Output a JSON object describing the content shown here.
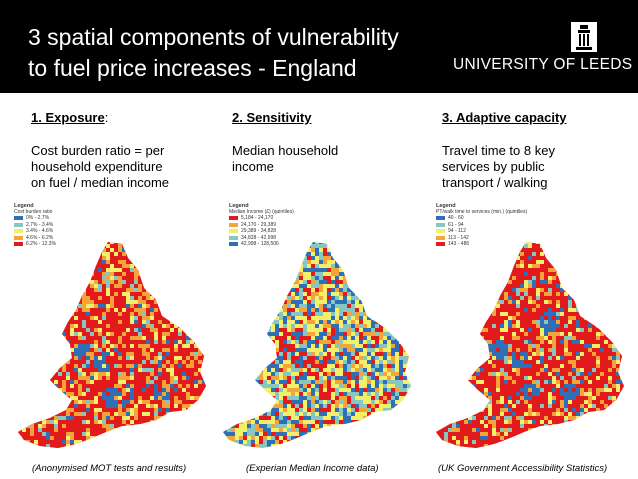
{
  "header": {
    "title_line1": "3 spatial components  of vulnerability",
    "title_line2": "to fuel price increases - England",
    "logo_text": "UNIVERSITY OF LEEDS",
    "logo_icon": "tower-icon"
  },
  "columns": [
    {
      "number_label": "1. Exposure",
      "number_suffix": ":",
      "description": [
        "Cost burden ratio = per",
        "household expenditure",
        "on fuel / median income"
      ],
      "legend": {
        "title": "Legend",
        "subtitle": "Cost burden ratio",
        "items": [
          {
            "label": "0% - 2.7%",
            "color": "#2e6fb7"
          },
          {
            "label": "2.7% - 3.4%",
            "color": "#86c7c1"
          },
          {
            "label": "3.4% - 4.6%",
            "color": "#f2ef6b"
          },
          {
            "label": "4.6% - 6.2%",
            "color": "#f5a43a"
          },
          {
            "label": "6.2% - 12.3%",
            "color": "#e31a1c"
          }
        ]
      },
      "source": "(Anonymised MOT tests and results)"
    },
    {
      "number_label": "2. Sensitivity",
      "number_suffix": "",
      "description": [
        "Median household",
        "income"
      ],
      "legend": {
        "title": "Legend",
        "subtitle": "Median Income (£) (quintiles)",
        "items": [
          {
            "label": "5,184 - 24,170",
            "color": "#e31a1c"
          },
          {
            "label": "24,170 - 29,389",
            "color": "#f5a43a"
          },
          {
            "label": "29,389 - 34,828",
            "color": "#f2ef6b"
          },
          {
            "label": "34,828 - 42,998",
            "color": "#86c7c1"
          },
          {
            "label": "42,998 - 128,506",
            "color": "#2e6fb7"
          }
        ]
      },
      "source": "(Experian Median Income data)"
    },
    {
      "number_label": "3. Adaptive capacity",
      "number_suffix": "",
      "description": [
        "Travel time to 8 key",
        "services by public",
        "transport / walking"
      ],
      "legend": {
        "title": "Legend",
        "subtitle": "PT/walk time to services (min.) (quintiles)",
        "items": [
          {
            "label": "40 - 60",
            "color": "#2e6fb7"
          },
          {
            "label": "61 - 94",
            "color": "#86c7c1"
          },
          {
            "label": "94 - 112",
            "color": "#f2ef6b"
          },
          {
            "label": "113 - 142",
            "color": "#f5a43a"
          },
          {
            "label": "143 - 486",
            "color": "#e31a1c"
          }
        ]
      },
      "source": "(UK Government Accessibility Statistics)"
    }
  ],
  "colors": {
    "header_bg": "#000000",
    "blue": "#2e6fb7",
    "teal": "#86c7c1",
    "yellow": "#f2ef6b",
    "orange": "#f5a43a",
    "red": "#e31a1c"
  }
}
